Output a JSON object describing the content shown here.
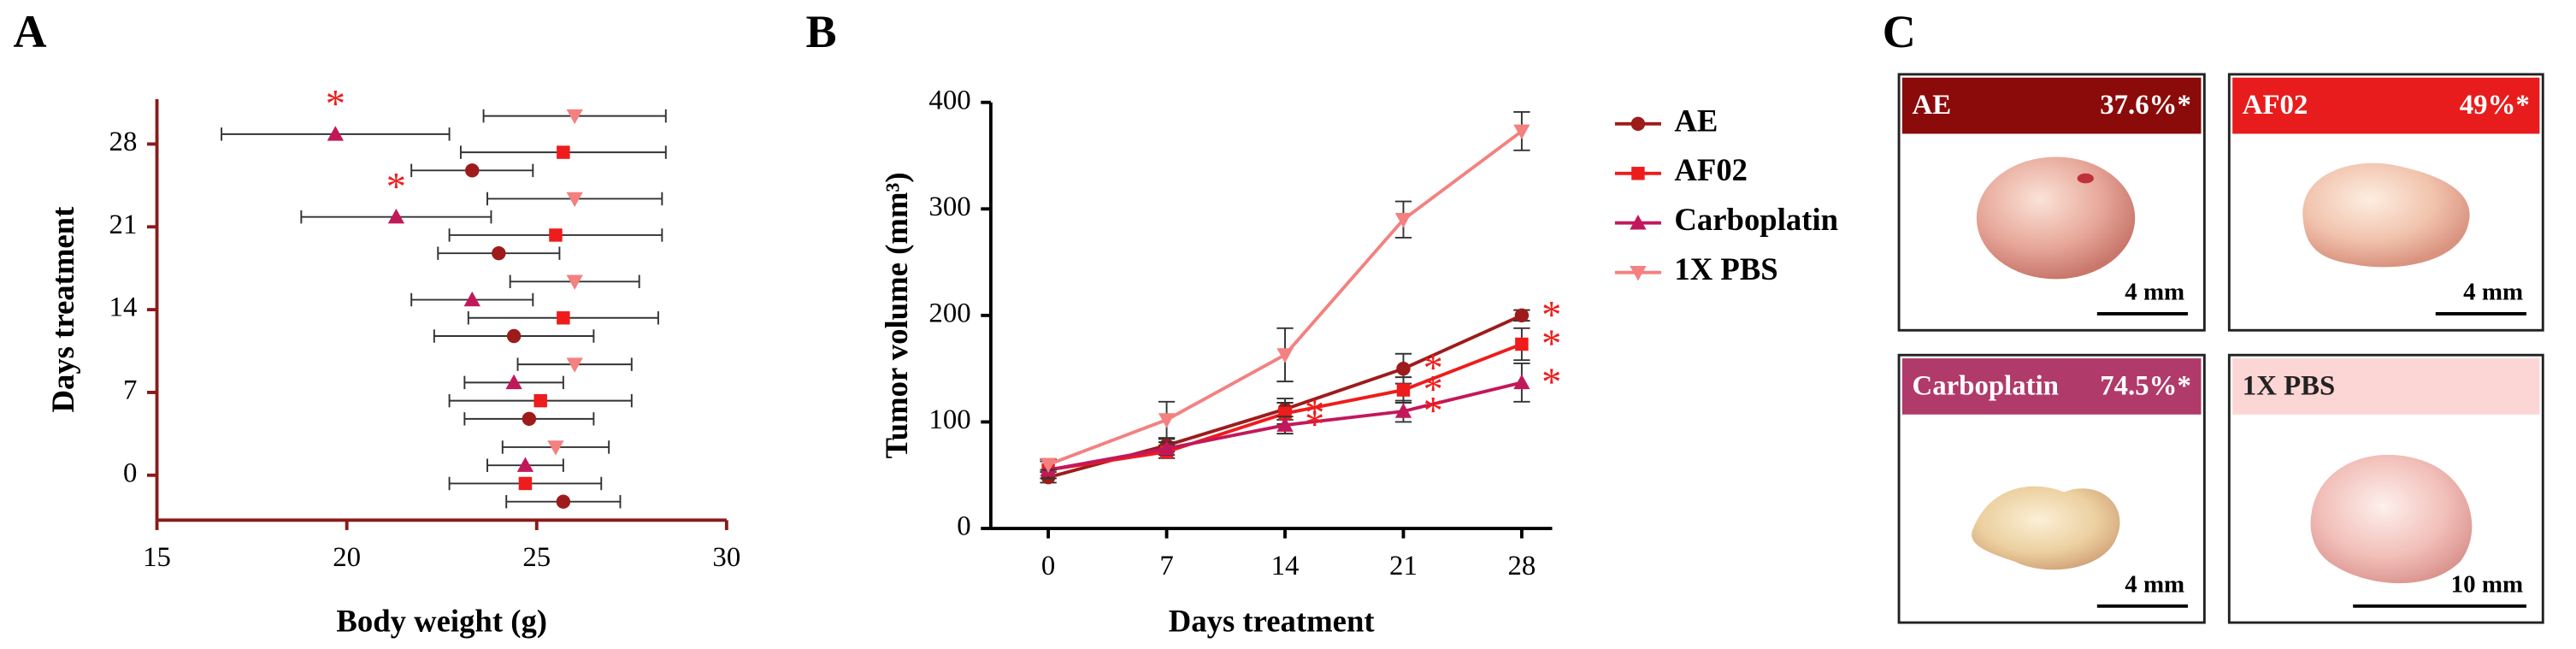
{
  "panel_labels": [
    "A",
    "B",
    "C"
  ],
  "chart_data": [
    {
      "type": "scatter",
      "xlabel": "Body weight (g)",
      "ylabel": "Days treatment",
      "y": [
        0,
        7,
        14,
        21,
        28
      ],
      "xlim": [
        15,
        30
      ],
      "xticks": [
        15,
        20,
        25,
        30
      ],
      "ylim": [
        -3.8,
        31.8
      ],
      "yticks": [
        0,
        7,
        14,
        21,
        28
      ],
      "significance_mark": "*",
      "series": [
        {
          "color": "#9e1b1b",
          "marker": "circle",
          "x": [
            25.7,
            24.8,
            24.4,
            24.0,
            23.3
          ],
          "errors": [
            1.5,
            1.7,
            2.1,
            1.6,
            1.6
          ],
          "significant": [
            false,
            false,
            false,
            false,
            false
          ]
        },
        {
          "color": "#ee1c1c",
          "marker": "square",
          "x": [
            24.7,
            25.1,
            25.7,
            25.5,
            25.7
          ],
          "errors": [
            2.0,
            2.4,
            2.5,
            2.8,
            2.7
          ],
          "significant": [
            false,
            false,
            false,
            false,
            false
          ]
        },
        {
          "color": "#c2185b",
          "marker": "triangle-up",
          "x": [
            24.7,
            24.4,
            23.3,
            21.3,
            19.7
          ],
          "errors": [
            1.0,
            1.3,
            1.6,
            2.5,
            3.0
          ],
          "significant": [
            false,
            false,
            false,
            true,
            true
          ]
        },
        {
          "color": "#f48080",
          "marker": "triangle-down",
          "x": [
            25.5,
            26.0,
            26.0,
            26.0,
            26.0
          ],
          "errors": [
            1.4,
            1.5,
            1.7,
            2.3,
            2.4
          ],
          "significant": [
            false,
            false,
            false,
            false,
            false
          ]
        }
      ]
    },
    {
      "type": "line",
      "xlabel": "Days treatment",
      "ylabel": "Tumor volume (mm³)",
      "x": [
        0,
        7,
        14,
        21,
        28
      ],
      "xlim": [
        -3.4,
        29.8
      ],
      "xticks": [
        0,
        7,
        14,
        21,
        28
      ],
      "ylim": [
        0,
        400
      ],
      "yticks": [
        0,
        100,
        200,
        300,
        400
      ],
      "significance_mark": "*",
      "series": [
        {
          "name": "AE",
          "color": "#9e1b1b",
          "marker": "circle",
          "values": [
            48,
            78,
            112,
            150,
            200
          ],
          "errors": [
            5,
            6,
            10,
            14,
            5
          ],
          "significant": [
            false,
            false,
            false,
            true,
            true
          ]
        },
        {
          "name": "AF02",
          "color": "#ee1c1c",
          "marker": "square",
          "values": [
            55,
            72,
            108,
            130,
            173
          ],
          "errors": [
            8,
            6,
            10,
            12,
            15
          ],
          "significant": [
            false,
            false,
            true,
            true,
            true
          ]
        },
        {
          "name": "Carboplatin",
          "color": "#c2185b",
          "marker": "triangle-up",
          "values": [
            55,
            75,
            97,
            110,
            137
          ],
          "errors": [
            8,
            6,
            8,
            10,
            18
          ],
          "significant": [
            false,
            false,
            true,
            true,
            true
          ]
        },
        {
          "name": "1X PBS",
          "color": "#f48080",
          "marker": "triangle-down",
          "values": [
            60,
            102,
            163,
            290,
            373
          ],
          "errors": [
            5,
            17,
            25,
            17,
            18
          ],
          "significant": [
            false,
            false,
            false,
            false,
            false
          ]
        }
      ]
    }
  ],
  "photos": [
    {
      "title": "AE",
      "inhibition": "37.6%*",
      "scale_bar": "4 mm",
      "color": "#8b0a0a"
    },
    {
      "title": "AF02",
      "inhibition": "49%*",
      "scale_bar": "4 mm",
      "color": "#e81c1c"
    },
    {
      "title": "Carboplatin",
      "inhibition": "74.5%*",
      "scale_bar": "4 mm",
      "color": "#b03a6a"
    },
    {
      "title": "1X PBS",
      "scale_bar": "10 mm",
      "color": "#fcd5d5"
    }
  ]
}
